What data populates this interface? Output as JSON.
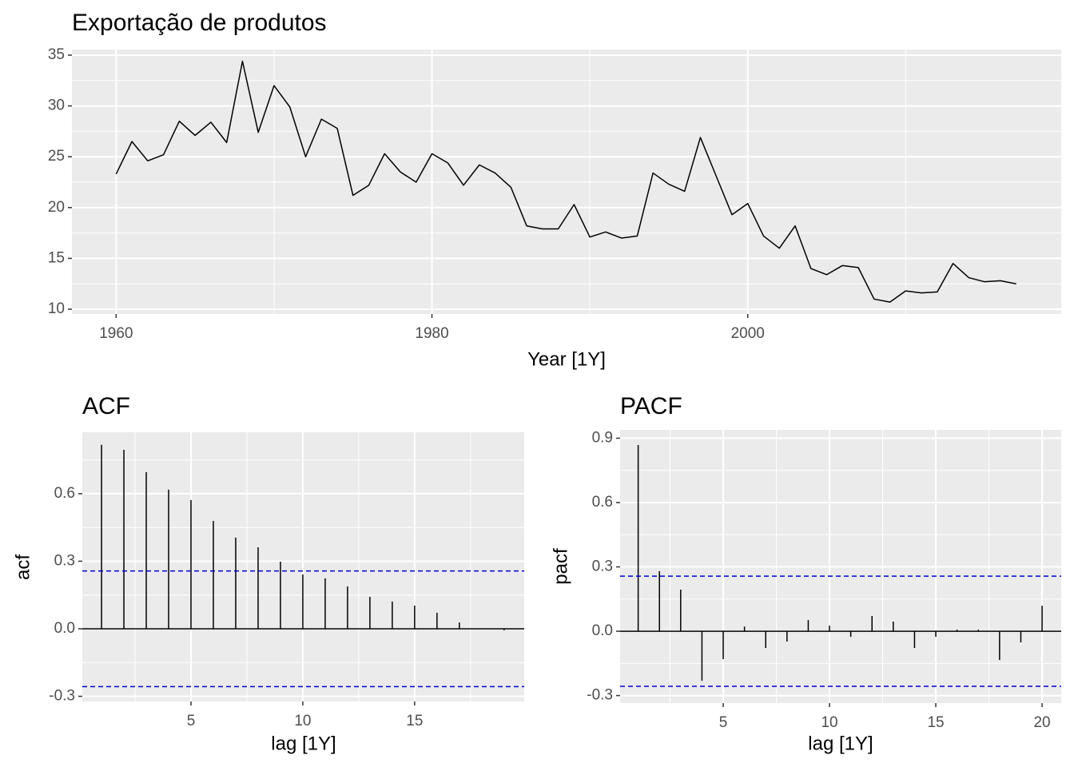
{
  "chart_data": [
    {
      "type": "line",
      "title": "Exportação de produtos",
      "xlabel": "Year [1Y]",
      "color": "#000000",
      "grid": true,
      "x": [
        1960,
        1961,
        1962,
        1963,
        1964,
        1965,
        1966,
        1967,
        1968,
        1969,
        1970,
        1971,
        1972,
        1973,
        1974,
        1975,
        1976,
        1977,
        1978,
        1979,
        1980,
        1981,
        1982,
        1983,
        1984,
        1985,
        1986,
        1987,
        1988,
        1989,
        1990,
        1991,
        1992,
        1993,
        1994,
        1995,
        1996,
        1997,
        1998,
        1999,
        2000,
        2001,
        2002,
        2003,
        2004,
        2005,
        2006,
        2007,
        2008,
        2009,
        2010,
        2011,
        2012,
        2013,
        2014,
        2015,
        2016,
        2017
      ],
      "values": [
        23.3,
        26.5,
        24.6,
        25.2,
        28.5,
        27.1,
        28.4,
        26.4,
        34.4,
        27.4,
        32.0,
        29.9,
        25.0,
        28.7,
        27.8,
        21.2,
        22.2,
        25.3,
        23.5,
        22.5,
        25.3,
        24.4,
        22.2,
        24.2,
        23.4,
        22.0,
        18.2,
        17.9,
        17.9,
        20.3,
        17.1,
        17.6,
        17.0,
        17.2,
        23.4,
        22.3,
        21.6,
        26.9,
        23.1,
        19.3,
        20.4,
        17.2,
        16.0,
        18.2,
        14.0,
        13.4,
        14.3,
        14.1,
        11.0,
        10.7,
        11.8,
        11.6,
        11.7,
        14.5,
        13.1,
        12.7,
        12.8,
        12.5
      ],
      "xlim": [
        1957.2,
        2019.85
      ],
      "xticks": [
        1960,
        1980,
        2000
      ],
      "ylim": [
        9.53,
        35.55
      ],
      "yticks": [
        10,
        15,
        20,
        25,
        30,
        35
      ]
    },
    {
      "type": "stem",
      "title": "ACF",
      "xlabel": "lag [1Y]",
      "ylabel": "acf",
      "color": "#000000",
      "grid": true,
      "x": [
        1,
        2,
        3,
        4,
        5,
        6,
        7,
        8,
        9,
        10,
        11,
        12,
        13,
        14,
        15,
        16,
        17,
        18,
        19
      ],
      "values": [
        0.817,
        0.795,
        0.696,
        0.618,
        0.572,
        0.479,
        0.405,
        0.362,
        0.298,
        0.241,
        0.224,
        0.188,
        0.142,
        0.121,
        0.103,
        0.071,
        0.028,
        0.002,
        -0.007
      ],
      "ci": 0.257,
      "ci_color": "#0000cc",
      "xlim": [
        0.14,
        19.9
      ],
      "xticks": [
        5,
        10,
        15
      ],
      "ylim": [
        -0.323,
        0.873
      ],
      "yticks": [
        -0.3,
        {
          "value": 0,
          "label": "0.0"
        },
        0.3,
        0.6
      ]
    },
    {
      "type": "stem",
      "title": "PACF",
      "xlabel": "lag [1Y]",
      "ylabel": "pacf",
      "color": "#000000",
      "grid": true,
      "x": [
        1,
        2,
        3,
        4,
        5,
        6,
        7,
        8,
        9,
        10,
        11,
        12,
        13,
        14,
        15,
        16,
        17,
        18,
        19,
        20
      ],
      "values": [
        0.868,
        0.28,
        0.194,
        -0.231,
        -0.13,
        0.022,
        -0.078,
        -0.048,
        0.052,
        0.026,
        -0.026,
        0.071,
        0.045,
        -0.078,
        -0.026,
        0.007,
        0.007,
        -0.134,
        -0.052,
        0.119
      ],
      "ci": 0.257,
      "ci_color": "#0000cc",
      "xlim": [
        0.15,
        20.9
      ],
      "xticks": [
        5,
        10,
        15,
        20
      ],
      "ylim": [
        -0.335,
        0.939
      ],
      "yticks": [
        -0.3,
        {
          "value": 0,
          "label": "0.0"
        },
        0.3,
        0.6,
        0.9
      ]
    }
  ]
}
